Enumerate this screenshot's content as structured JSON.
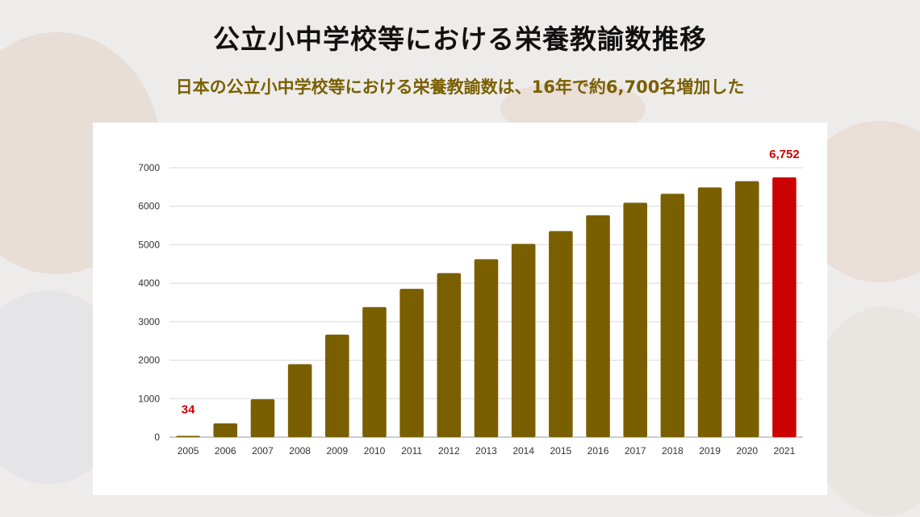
{
  "page": {
    "title": "公立小中学校等における栄養教諭数推移",
    "subtitle": "日本の公立小中学校等における栄養教諭数は、16年で約6,700名増加した"
  },
  "colors": {
    "bar": "#7a5f00",
    "highlight_bar": "#cc0000",
    "data_label": "#cc0000",
    "subtitle": "#7a6000",
    "grid": "#d9d9d9"
  },
  "chart_data": {
    "type": "bar",
    "title": "",
    "xlabel": "",
    "ylabel": "",
    "categories": [
      "2005",
      "2006",
      "2007",
      "2008",
      "2009",
      "2010",
      "2011",
      "2012",
      "2013",
      "2014",
      "2015",
      "2016",
      "2017",
      "2018",
      "2019",
      "2020",
      "2021"
    ],
    "values": [
      34,
      359,
      986,
      1897,
      2663,
      3379,
      3853,
      4262,
      4624,
      5023,
      5356,
      5765,
      6092,
      6324,
      6488,
      6652,
      6752
    ],
    "ylim": [
      0,
      7000
    ],
    "yticks": [
      0,
      1000,
      2000,
      3000,
      4000,
      5000,
      6000,
      7000
    ],
    "grid": true,
    "highlight_index": 16,
    "data_labels": [
      {
        "index": 0,
        "text": "34"
      },
      {
        "index": 16,
        "text": "6,752"
      }
    ]
  }
}
